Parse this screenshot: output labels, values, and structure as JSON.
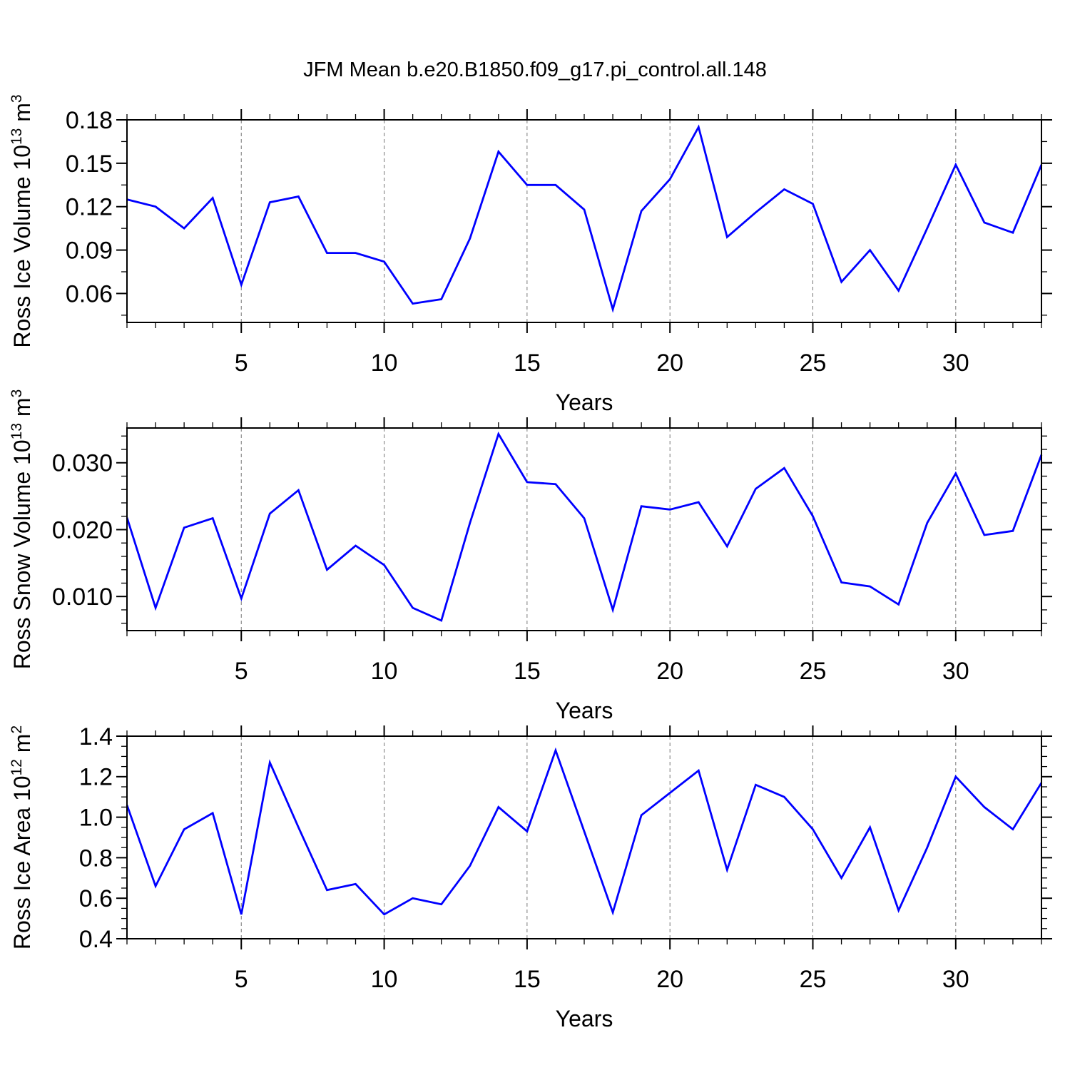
{
  "page": {
    "title": "JFM Mean b.e20.B1850.f09_g17.pi_control.all.148",
    "background_color": "#ffffff",
    "text_color": "#000000",
    "line_color": "#0000ff",
    "grid_color": "#777777",
    "frame_color": "#000000"
  },
  "chart_data": [
    {
      "type": "line",
      "name": "ross-ice-volume",
      "title": "",
      "xlabel": "Years",
      "ylabel": "Ross Ice Volume 10^13 m^3",
      "ylabel_parts": [
        {
          "t": "Ross Ice Volume 10"
        },
        {
          "t": "13",
          "sup": true
        },
        {
          "t": " m"
        },
        {
          "t": "3",
          "sup": true
        }
      ],
      "x": [
        1,
        2,
        3,
        4,
        5,
        6,
        7,
        8,
        9,
        10,
        11,
        12,
        13,
        14,
        15,
        16,
        17,
        18,
        19,
        20,
        21,
        22,
        23,
        24,
        25,
        26,
        27,
        28,
        29,
        30,
        31,
        32,
        33
      ],
      "values": [
        0.125,
        0.12,
        0.105,
        0.126,
        0.066,
        0.123,
        0.127,
        0.088,
        0.088,
        0.082,
        0.053,
        0.056,
        0.098,
        0.158,
        0.135,
        0.135,
        0.118,
        0.049,
        0.117,
        0.139,
        0.175,
        0.099,
        0.116,
        0.132,
        0.122,
        0.068,
        0.09,
        0.062,
        0.105,
        0.149,
        0.109,
        0.102,
        0.149
      ],
      "xlim": [
        1,
        33
      ],
      "ylim": [
        0.04,
        0.18
      ],
      "xticks_major": [
        5,
        10,
        15,
        20,
        25,
        30
      ],
      "xtick_minor_step": 1,
      "yticks": {
        "values": [
          0.06,
          0.09,
          0.12,
          0.15,
          0.18
        ],
        "labels": [
          "0.06",
          "0.09",
          "0.12",
          "0.15",
          "0.18"
        ]
      },
      "ytick_minor_step": 0.015,
      "grid_x": [
        5,
        10,
        15,
        20,
        25,
        30
      ],
      "grid_style": "dashed",
      "legend": "none"
    },
    {
      "type": "line",
      "name": "ross-snow-volume",
      "title": "",
      "xlabel": "Years",
      "ylabel": "Ross Snow Volume 10^13 m^3",
      "ylabel_parts": [
        {
          "t": "Ross Snow Volume 10"
        },
        {
          "t": "13",
          "sup": true
        },
        {
          "t": " m"
        },
        {
          "t": "3",
          "sup": true
        }
      ],
      "x": [
        1,
        2,
        3,
        4,
        5,
        6,
        7,
        8,
        9,
        10,
        11,
        12,
        13,
        14,
        15,
        16,
        17,
        18,
        19,
        20,
        21,
        22,
        23,
        24,
        25,
        26,
        27,
        28,
        29,
        30,
        31,
        32,
        33
      ],
      "values": [
        0.0218,
        0.0083,
        0.0203,
        0.0217,
        0.0097,
        0.0224,
        0.0259,
        0.014,
        0.0176,
        0.0147,
        0.0083,
        0.0064,
        0.021,
        0.0343,
        0.0271,
        0.0268,
        0.0217,
        0.008,
        0.0235,
        0.023,
        0.0241,
        0.0175,
        0.0261,
        0.0292,
        0.022,
        0.0121,
        0.0115,
        0.0088,
        0.021,
        0.0284,
        0.0192,
        0.0198,
        0.0312
      ],
      "xlim": [
        1,
        33
      ],
      "ylim": [
        0.0049,
        0.0352
      ],
      "xticks_major": [
        5,
        10,
        15,
        20,
        25,
        30
      ],
      "xtick_minor_step": 1,
      "yticks": {
        "values": [
          0.01,
          0.02,
          0.03
        ],
        "labels": [
          "0.010",
          "0.020",
          "0.030"
        ]
      },
      "ytick_minor_step": 0.002,
      "grid_x": [
        5,
        10,
        15,
        20,
        25,
        30
      ],
      "grid_style": "dashed",
      "legend": "none"
    },
    {
      "type": "line",
      "name": "ross-ice-area",
      "title": "",
      "xlabel": "Years",
      "ylabel": "Ross Ice Area 10^12 m^2",
      "ylabel_parts": [
        {
          "t": "Ross Ice Area 10"
        },
        {
          "t": "12",
          "sup": true
        },
        {
          "t": " m"
        },
        {
          "t": "2",
          "sup": true
        }
      ],
      "x": [
        1,
        2,
        3,
        4,
        5,
        6,
        7,
        8,
        9,
        10,
        11,
        12,
        13,
        14,
        15,
        16,
        17,
        18,
        19,
        20,
        21,
        22,
        23,
        24,
        25,
        26,
        27,
        28,
        29,
        30,
        31,
        32,
        33
      ],
      "values": [
        1.06,
        0.66,
        0.94,
        1.02,
        0.52,
        1.27,
        0.95,
        0.64,
        0.67,
        0.52,
        0.6,
        0.57,
        0.76,
        1.05,
        0.93,
        1.33,
        0.93,
        0.53,
        1.01,
        1.12,
        1.23,
        0.74,
        1.16,
        1.1,
        0.94,
        0.7,
        0.95,
        0.54,
        0.85,
        1.2,
        1.05,
        0.94,
        1.17
      ],
      "xlim": [
        1,
        33
      ],
      "ylim": [
        0.4,
        1.4
      ],
      "xticks_major": [
        5,
        10,
        15,
        20,
        25,
        30
      ],
      "xtick_minor_step": 1,
      "yticks": {
        "values": [
          0.4,
          0.6,
          0.8,
          1.0,
          1.2,
          1.4
        ],
        "labels": [
          "0.4",
          "0.6",
          "0.8",
          "1.0",
          "1.2",
          "1.4"
        ]
      },
      "ytick_minor_step": 0.05,
      "grid_x": [
        5,
        10,
        15,
        20,
        25,
        30
      ],
      "grid_style": "dashed",
      "legend": "none"
    }
  ]
}
